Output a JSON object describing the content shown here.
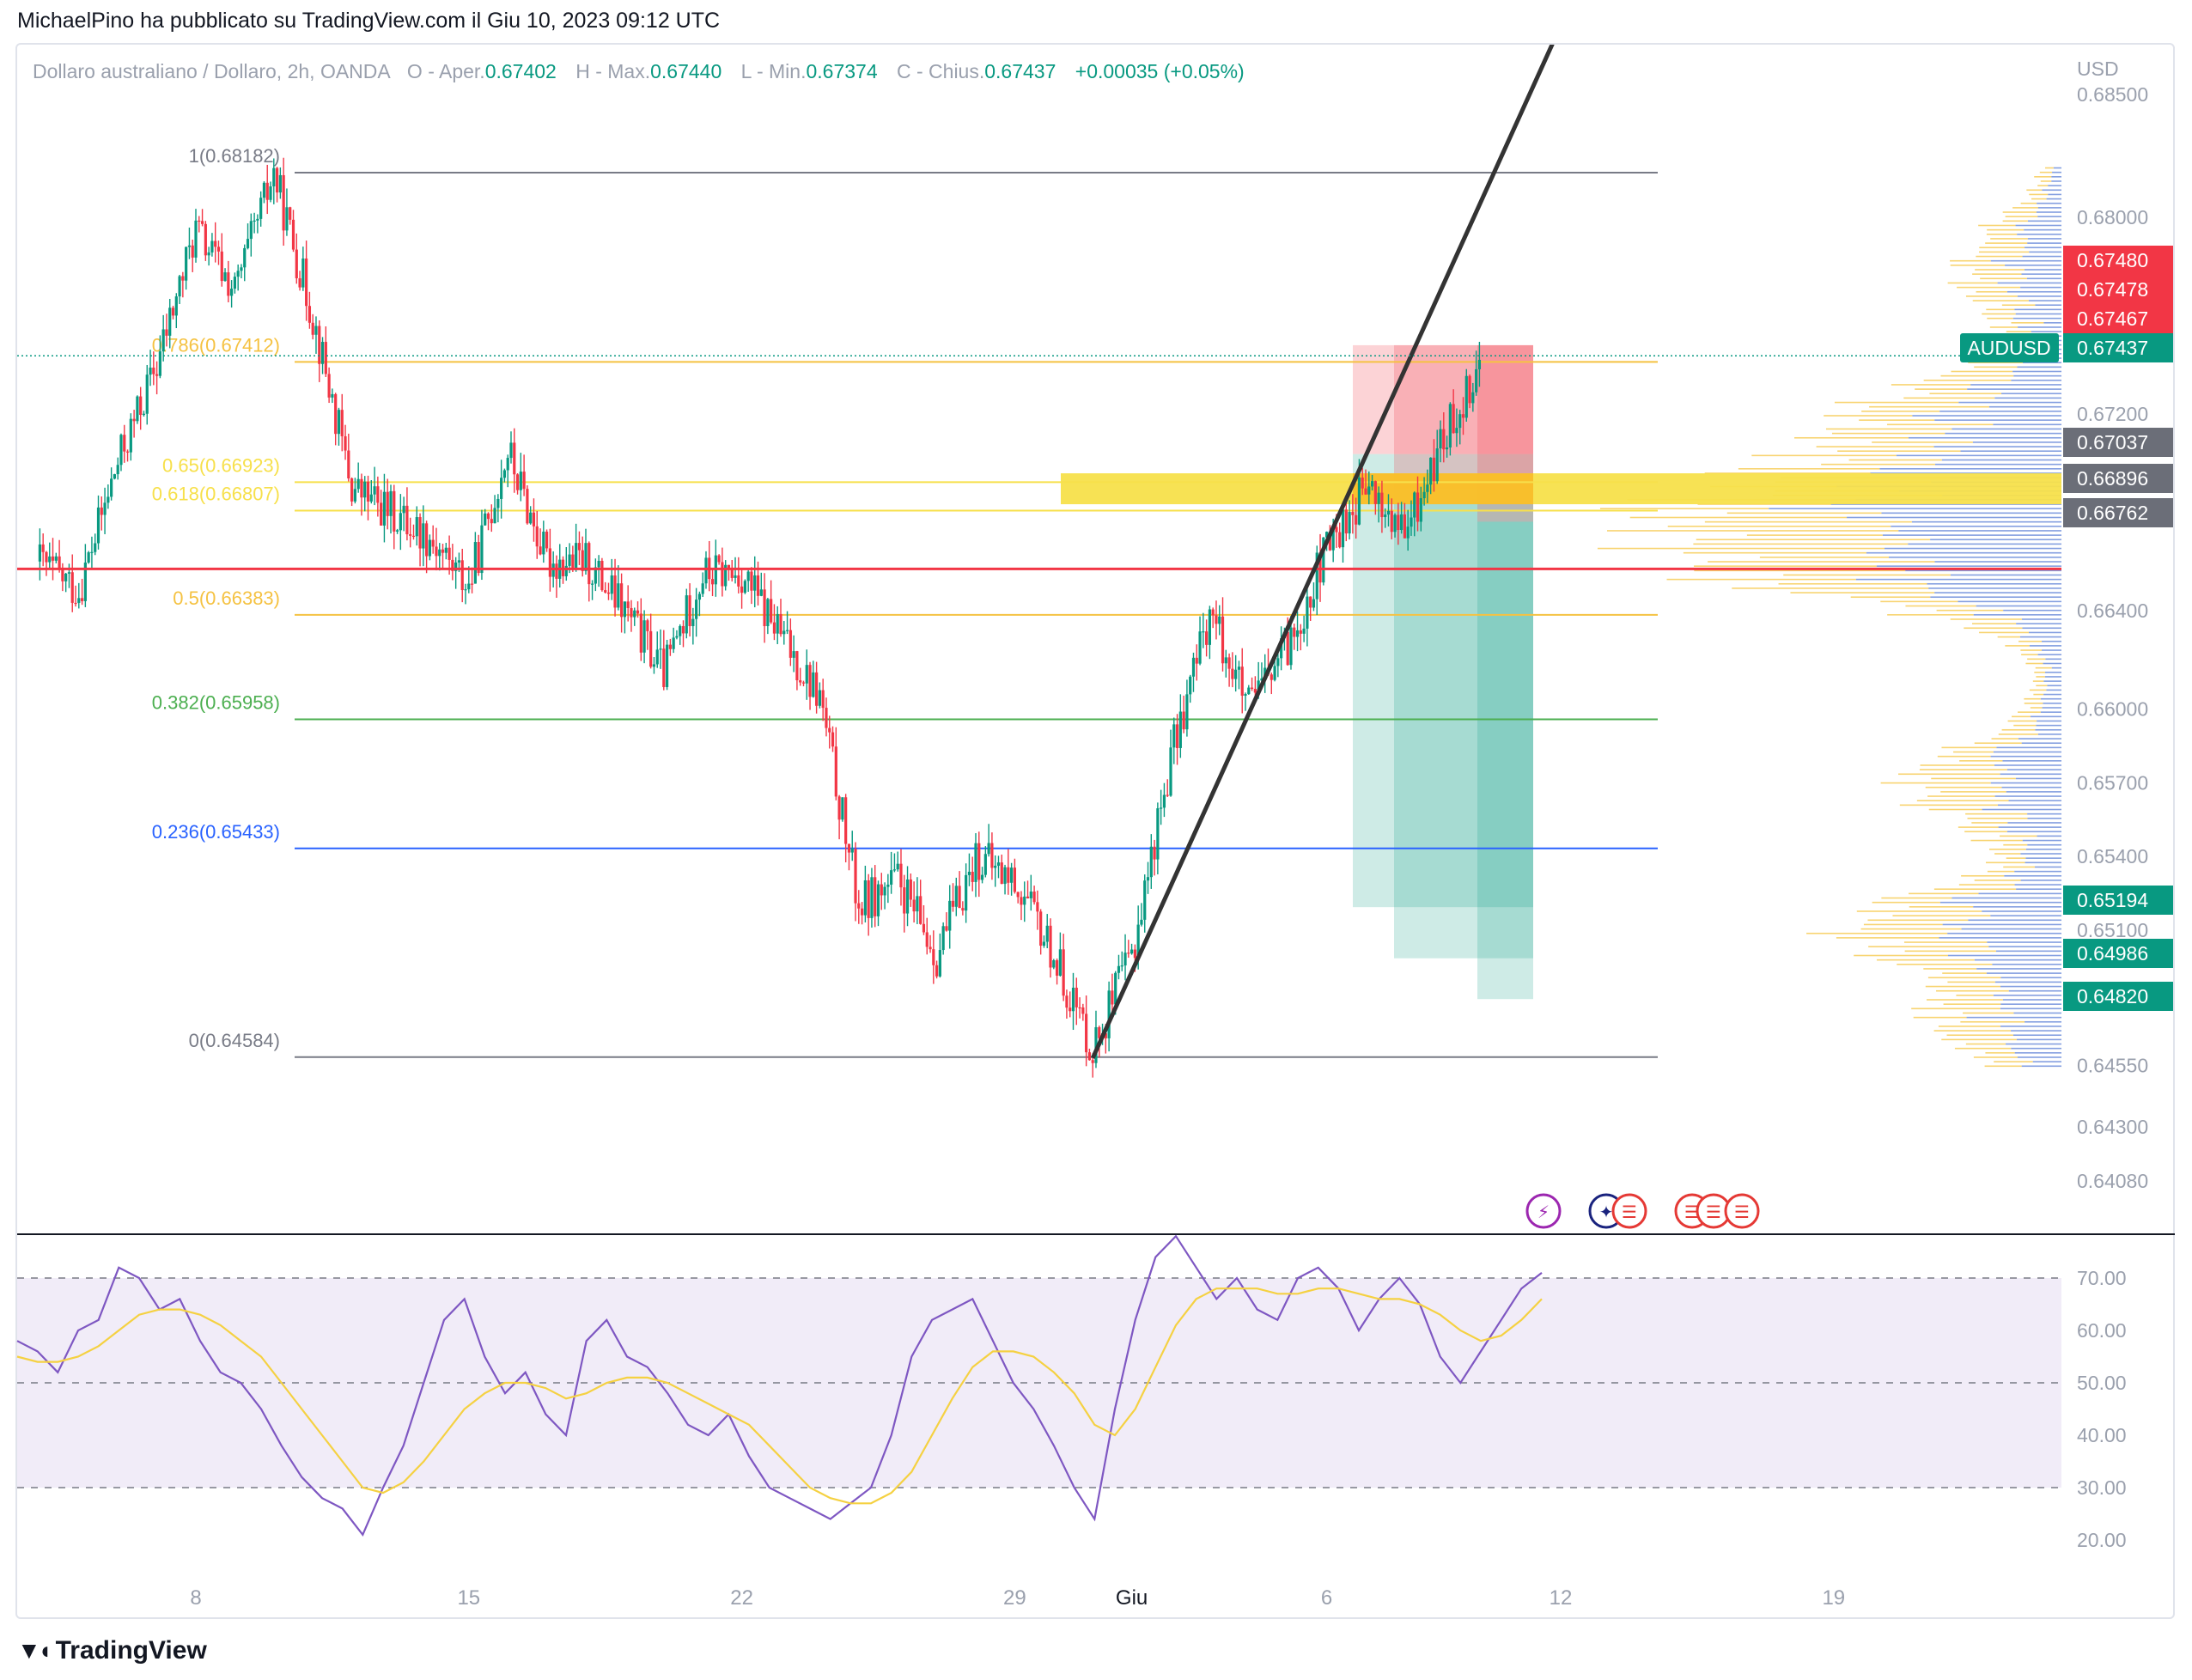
{
  "header": {
    "published": "MichaelPino ha pubblicato su TradingView.com il Giu 10, 2023 09:12 UTC"
  },
  "legend": {
    "symbol": "Dollaro australiano / Dollaro, 2h, OANDA",
    "open_label": "O - Aper.",
    "open": "0.67402",
    "high_label": "H - Max.",
    "high": "0.67440",
    "low_label": "L - Min.",
    "low": "0.67374",
    "close_label": "C - Chius.",
    "close": "0.67437",
    "change": "+0.00035 (+0.05%)"
  },
  "footer": {
    "brand": "TradingView",
    "logo": "tradingview-logo-icon"
  },
  "colors": {
    "up": "#089981",
    "down": "#f23645",
    "fib_786": "#f5c242",
    "fib_618": "#f7e04b",
    "fib_05": "#f5c242",
    "fib_382": "#4caf50",
    "fib_236": "#2962ff",
    "red_line": "#f23645",
    "trend_line": "#333333",
    "rsi": "#7e57c2",
    "rsi_ma": "#f5d142",
    "vp_up": "#5b7fd6",
    "vp_down": "#f5c542"
  },
  "chart_data": [
    {
      "type": "candlestick",
      "symbol": "AUDUSD",
      "timeframe": "2h",
      "currency_label": "USD",
      "y_ticks": [
        0.685,
        0.68,
        0.672,
        0.664,
        0.66,
        0.657,
        0.654,
        0.651,
        0.6455,
        0.643,
        0.6408
      ],
      "x_ticks": [
        "8",
        "15",
        "22",
        "29",
        "Giu",
        "6",
        "12",
        "19"
      ],
      "price_path": [
        [
          "May 4",
          0.666
        ],
        [
          "May 5",
          0.6648
        ],
        [
          "May 6",
          0.67
        ],
        [
          "May 7",
          0.674
        ],
        [
          "May 8",
          0.6795
        ],
        [
          "May 9",
          0.677
        ],
        [
          "May 10",
          0.6818
        ],
        [
          "May 11",
          0.676
        ],
        [
          "May 12",
          0.669
        ],
        [
          "May 14",
          0.667
        ],
        [
          "May 15",
          0.665
        ],
        [
          "May 16",
          0.6705
        ],
        [
          "May 17",
          0.666
        ],
        [
          "May 18",
          0.666
        ],
        [
          "May 19",
          0.664
        ],
        [
          "May 20",
          0.6615
        ],
        [
          "May 21",
          0.6655
        ],
        [
          "May 22",
          0.6655
        ],
        [
          "May 23",
          0.663
        ],
        [
          "May 24",
          0.6605
        ],
        [
          "May 25",
          0.652
        ],
        [
          "May 26",
          0.653
        ],
        [
          "May 27",
          0.65
        ],
        [
          "May 28",
          0.654
        ],
        [
          "May 29",
          0.653
        ],
        [
          "May 30",
          0.65
        ],
        [
          "May 31",
          0.6462
        ],
        [
          "Jun 1",
          0.65
        ],
        [
          "Jun 2",
          0.658
        ],
        [
          "Jun 3",
          0.664
        ],
        [
          "Jun 4",
          0.66
        ],
        [
          "Jun 5",
          0.6625
        ],
        [
          "Jun 6",
          0.6665
        ],
        [
          "Jun 7",
          0.669
        ],
        [
          "Jun 8",
          0.667
        ],
        [
          "Jun 9",
          0.671
        ],
        [
          "Jun 10",
          0.6744
        ]
      ],
      "fibonacci": [
        {
          "label": "1(0.68182)",
          "value": 0.68182
        },
        {
          "label": "0.786(0.67412)",
          "value": 0.67412
        },
        {
          "label": "0.65(0.66923)",
          "value": 0.66923
        },
        {
          "label": "0.618(0.66807)",
          "value": 0.66807
        },
        {
          "label": "0.5(0.66383)",
          "value": 0.66383
        },
        {
          "label": "0.382(0.65958)",
          "value": 0.65958
        },
        {
          "label": "0.236(0.65433)",
          "value": 0.65433
        },
        {
          "label": "0(0.64584)",
          "value": 0.64584
        }
      ],
      "horizontal_level": 0.6657,
      "trendline": {
        "from": [
          "May 31",
          0.6458
        ],
        "to": [
          "Jun 12",
          0.6878
        ]
      },
      "position_zones": {
        "entries": [
          0.67037,
          0.66896,
          0.66762
        ],
        "stops": [
          0.6748,
          0.67478,
          0.67467
        ],
        "targets": [
          0.65194,
          0.64986,
          0.6482
        ]
      },
      "price_badges": [
        {
          "value": "0.67480",
          "kind": "stop"
        },
        {
          "value": "0.67478",
          "kind": "stop"
        },
        {
          "value": "0.67467",
          "kind": "stop"
        },
        {
          "value": "0.67437",
          "kind": "last",
          "label": "AUDUSD"
        },
        {
          "value": "0.67037",
          "kind": "entry"
        },
        {
          "value": "0.66896",
          "kind": "entry"
        },
        {
          "value": "0.66762",
          "kind": "entry"
        },
        {
          "value": "0.65194",
          "kind": "target"
        },
        {
          "value": "0.64986",
          "kind": "target"
        },
        {
          "value": "0.64820",
          "kind": "target"
        }
      ],
      "volume_profile": {
        "shown": true,
        "side": "right"
      },
      "event_icons": [
        "lightning-icon",
        "australia-flag-icon",
        "us-flag-icon",
        "us-flag-icon",
        "us-flag-icon"
      ],
      "grid": false
    },
    {
      "type": "line",
      "indicator": "RSI",
      "y_ticks": [
        70.0,
        60.0,
        50.0,
        40.0,
        30.0,
        20.0
      ],
      "bands": [
        30,
        50,
        70
      ],
      "series": [
        {
          "role": "rsi",
          "values": [
            58,
            56,
            52,
            60,
            62,
            72,
            70,
            64,
            66,
            58,
            52,
            50,
            45,
            38,
            32,
            28,
            26,
            21,
            30,
            38,
            50,
            62,
            66,
            55,
            48,
            52,
            44,
            40,
            58,
            62,
            55,
            53,
            48,
            42,
            40,
            44,
            36,
            30,
            28,
            26,
            24,
            27,
            30,
            40,
            55,
            62,
            64,
            66,
            58,
            50,
            45,
            38,
            30,
            24,
            45,
            62,
            74,
            78,
            72,
            66,
            70,
            64,
            62,
            70,
            72,
            68,
            60,
            66,
            70,
            65,
            55,
            50,
            56,
            62,
            68,
            71
          ]
        },
        {
          "role": "rsi_ma",
          "values": [
            55,
            54,
            54,
            55,
            57,
            60,
            63,
            64,
            64,
            63,
            61,
            58,
            55,
            50,
            45,
            40,
            35,
            30,
            29,
            31,
            35,
            40,
            45,
            48,
            50,
            50,
            49,
            47,
            48,
            50,
            51,
            51,
            50,
            48,
            46,
            44,
            42,
            38,
            34,
            30,
            28,
            27,
            27,
            29,
            33,
            40,
            47,
            53,
            56,
            56,
            55,
            52,
            48,
            42,
            40,
            45,
            53,
            61,
            66,
            68,
            68,
            68,
            67,
            67,
            68,
            68,
            67,
            66,
            66,
            65,
            63,
            60,
            58,
            59,
            62,
            66
          ]
        }
      ]
    }
  ]
}
